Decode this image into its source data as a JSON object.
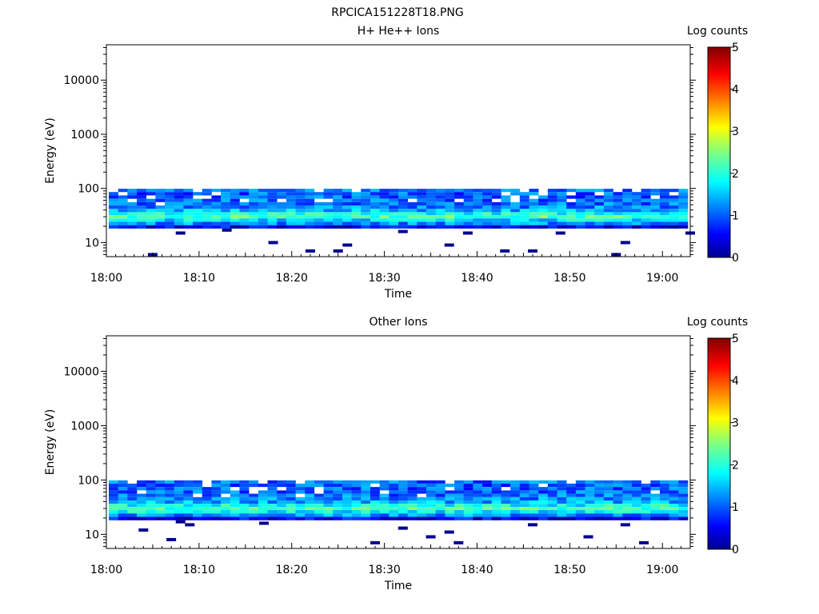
{
  "figure": {
    "title": "RPCICA151228T18.PNG"
  },
  "chart_data": [
    {
      "type": "heatmap",
      "title": "H+ He++ Ions",
      "xlabel": "Time",
      "ylabel": "Energy (eV)",
      "x_range": [
        "18:00",
        "19:03"
      ],
      "x_ticks": [
        "18:00",
        "18:10",
        "18:20",
        "18:30",
        "18:40",
        "18:50",
        "19:00"
      ],
      "y_scale": "log",
      "y_range": [
        5.5,
        45000
      ],
      "y_ticks": [
        10,
        100,
        1000,
        10000
      ],
      "y_tick_labels": [
        "10",
        "100",
        "1000",
        "10000"
      ],
      "colorbar": {
        "label": "Log counts",
        "range": [
          0,
          5
        ],
        "ticks": [
          "0",
          "1",
          "2",
          "3",
          "4",
          "5"
        ]
      },
      "time_bins": 62,
      "energy_bins": [
        {
          "energy_eV": 92,
          "level": 1.1
        },
        {
          "energy_eV": 80,
          "level": 1.0
        },
        {
          "energy_eV": 69,
          "level": 1.0
        },
        {
          "energy_eV": 60,
          "level": 1.05
        },
        {
          "energy_eV": 52,
          "level": 1.1
        },
        {
          "energy_eV": 45,
          "level": 1.2
        },
        {
          "energy_eV": 39,
          "level": 1.45
        },
        {
          "energy_eV": 34,
          "level": 1.9
        },
        {
          "energy_eV": 30,
          "level": 2.2
        },
        {
          "energy_eV": 26,
          "level": 1.7
        },
        {
          "energy_eV": 22.5,
          "level": 1.25
        },
        {
          "energy_eV": 19.5,
          "level": 0.5
        }
      ],
      "sparse_low_energy_counts": [
        {
          "time": "18:05",
          "energy_eV": 6
        },
        {
          "time": "18:08",
          "energy_eV": 15
        },
        {
          "time": "18:13",
          "energy_eV": 17
        },
        {
          "time": "18:18",
          "energy_eV": 10
        },
        {
          "time": "18:22",
          "energy_eV": 7
        },
        {
          "time": "18:25",
          "energy_eV": 7
        },
        {
          "time": "18:26",
          "energy_eV": 9
        },
        {
          "time": "18:32",
          "energy_eV": 16
        },
        {
          "time": "18:37",
          "energy_eV": 9
        },
        {
          "time": "18:39",
          "energy_eV": 15
        },
        {
          "time": "18:43",
          "energy_eV": 7
        },
        {
          "time": "18:46",
          "energy_eV": 7
        },
        {
          "time": "18:49",
          "energy_eV": 15
        },
        {
          "time": "18:55",
          "energy_eV": 6
        },
        {
          "time": "18:56",
          "energy_eV": 10
        },
        {
          "time": "19:03",
          "energy_eV": 15
        }
      ]
    },
    {
      "type": "heatmap",
      "title": "Other Ions",
      "xlabel": "Time",
      "ylabel": "Energy (eV)",
      "x_range": [
        "18:00",
        "19:03"
      ],
      "x_ticks": [
        "18:00",
        "18:10",
        "18:20",
        "18:30",
        "18:40",
        "18:50",
        "19:00"
      ],
      "y_scale": "log",
      "y_range": [
        5.5,
        45000
      ],
      "y_ticks": [
        10,
        100,
        1000,
        10000
      ],
      "y_tick_labels": [
        "10",
        "100",
        "1000",
        "10000"
      ],
      "colorbar": {
        "label": "Log counts",
        "range": [
          0,
          5
        ],
        "ticks": [
          "0",
          "1",
          "2",
          "3",
          "4",
          "5"
        ]
      },
      "time_bins": 62,
      "energy_bins": [
        {
          "energy_eV": 92,
          "level": 1.05
        },
        {
          "energy_eV": 80,
          "level": 1.0
        },
        {
          "energy_eV": 69,
          "level": 1.0
        },
        {
          "energy_eV": 60,
          "level": 1.05
        },
        {
          "energy_eV": 52,
          "level": 1.1
        },
        {
          "energy_eV": 45,
          "level": 1.2
        },
        {
          "energy_eV": 39,
          "level": 1.4
        },
        {
          "energy_eV": 34,
          "level": 1.85
        },
        {
          "energy_eV": 30,
          "level": 2.2
        },
        {
          "energy_eV": 26,
          "level": 1.75
        },
        {
          "energy_eV": 22.5,
          "level": 1.25
        },
        {
          "energy_eV": 19.5,
          "level": 0.5
        }
      ],
      "sparse_low_energy_counts": [
        {
          "time": "18:04",
          "energy_eV": 12
        },
        {
          "time": "18:07",
          "energy_eV": 8
        },
        {
          "time": "18:08",
          "energy_eV": 17
        },
        {
          "time": "18:09",
          "energy_eV": 15
        },
        {
          "time": "18:17",
          "energy_eV": 16
        },
        {
          "time": "18:29",
          "energy_eV": 7
        },
        {
          "time": "18:32",
          "energy_eV": 13
        },
        {
          "time": "18:35",
          "energy_eV": 9
        },
        {
          "time": "18:37",
          "energy_eV": 11
        },
        {
          "time": "18:38",
          "energy_eV": 7
        },
        {
          "time": "18:46",
          "energy_eV": 15
        },
        {
          "time": "18:52",
          "energy_eV": 9
        },
        {
          "time": "18:56",
          "energy_eV": 15
        },
        {
          "time": "18:58",
          "energy_eV": 7
        }
      ]
    }
  ]
}
